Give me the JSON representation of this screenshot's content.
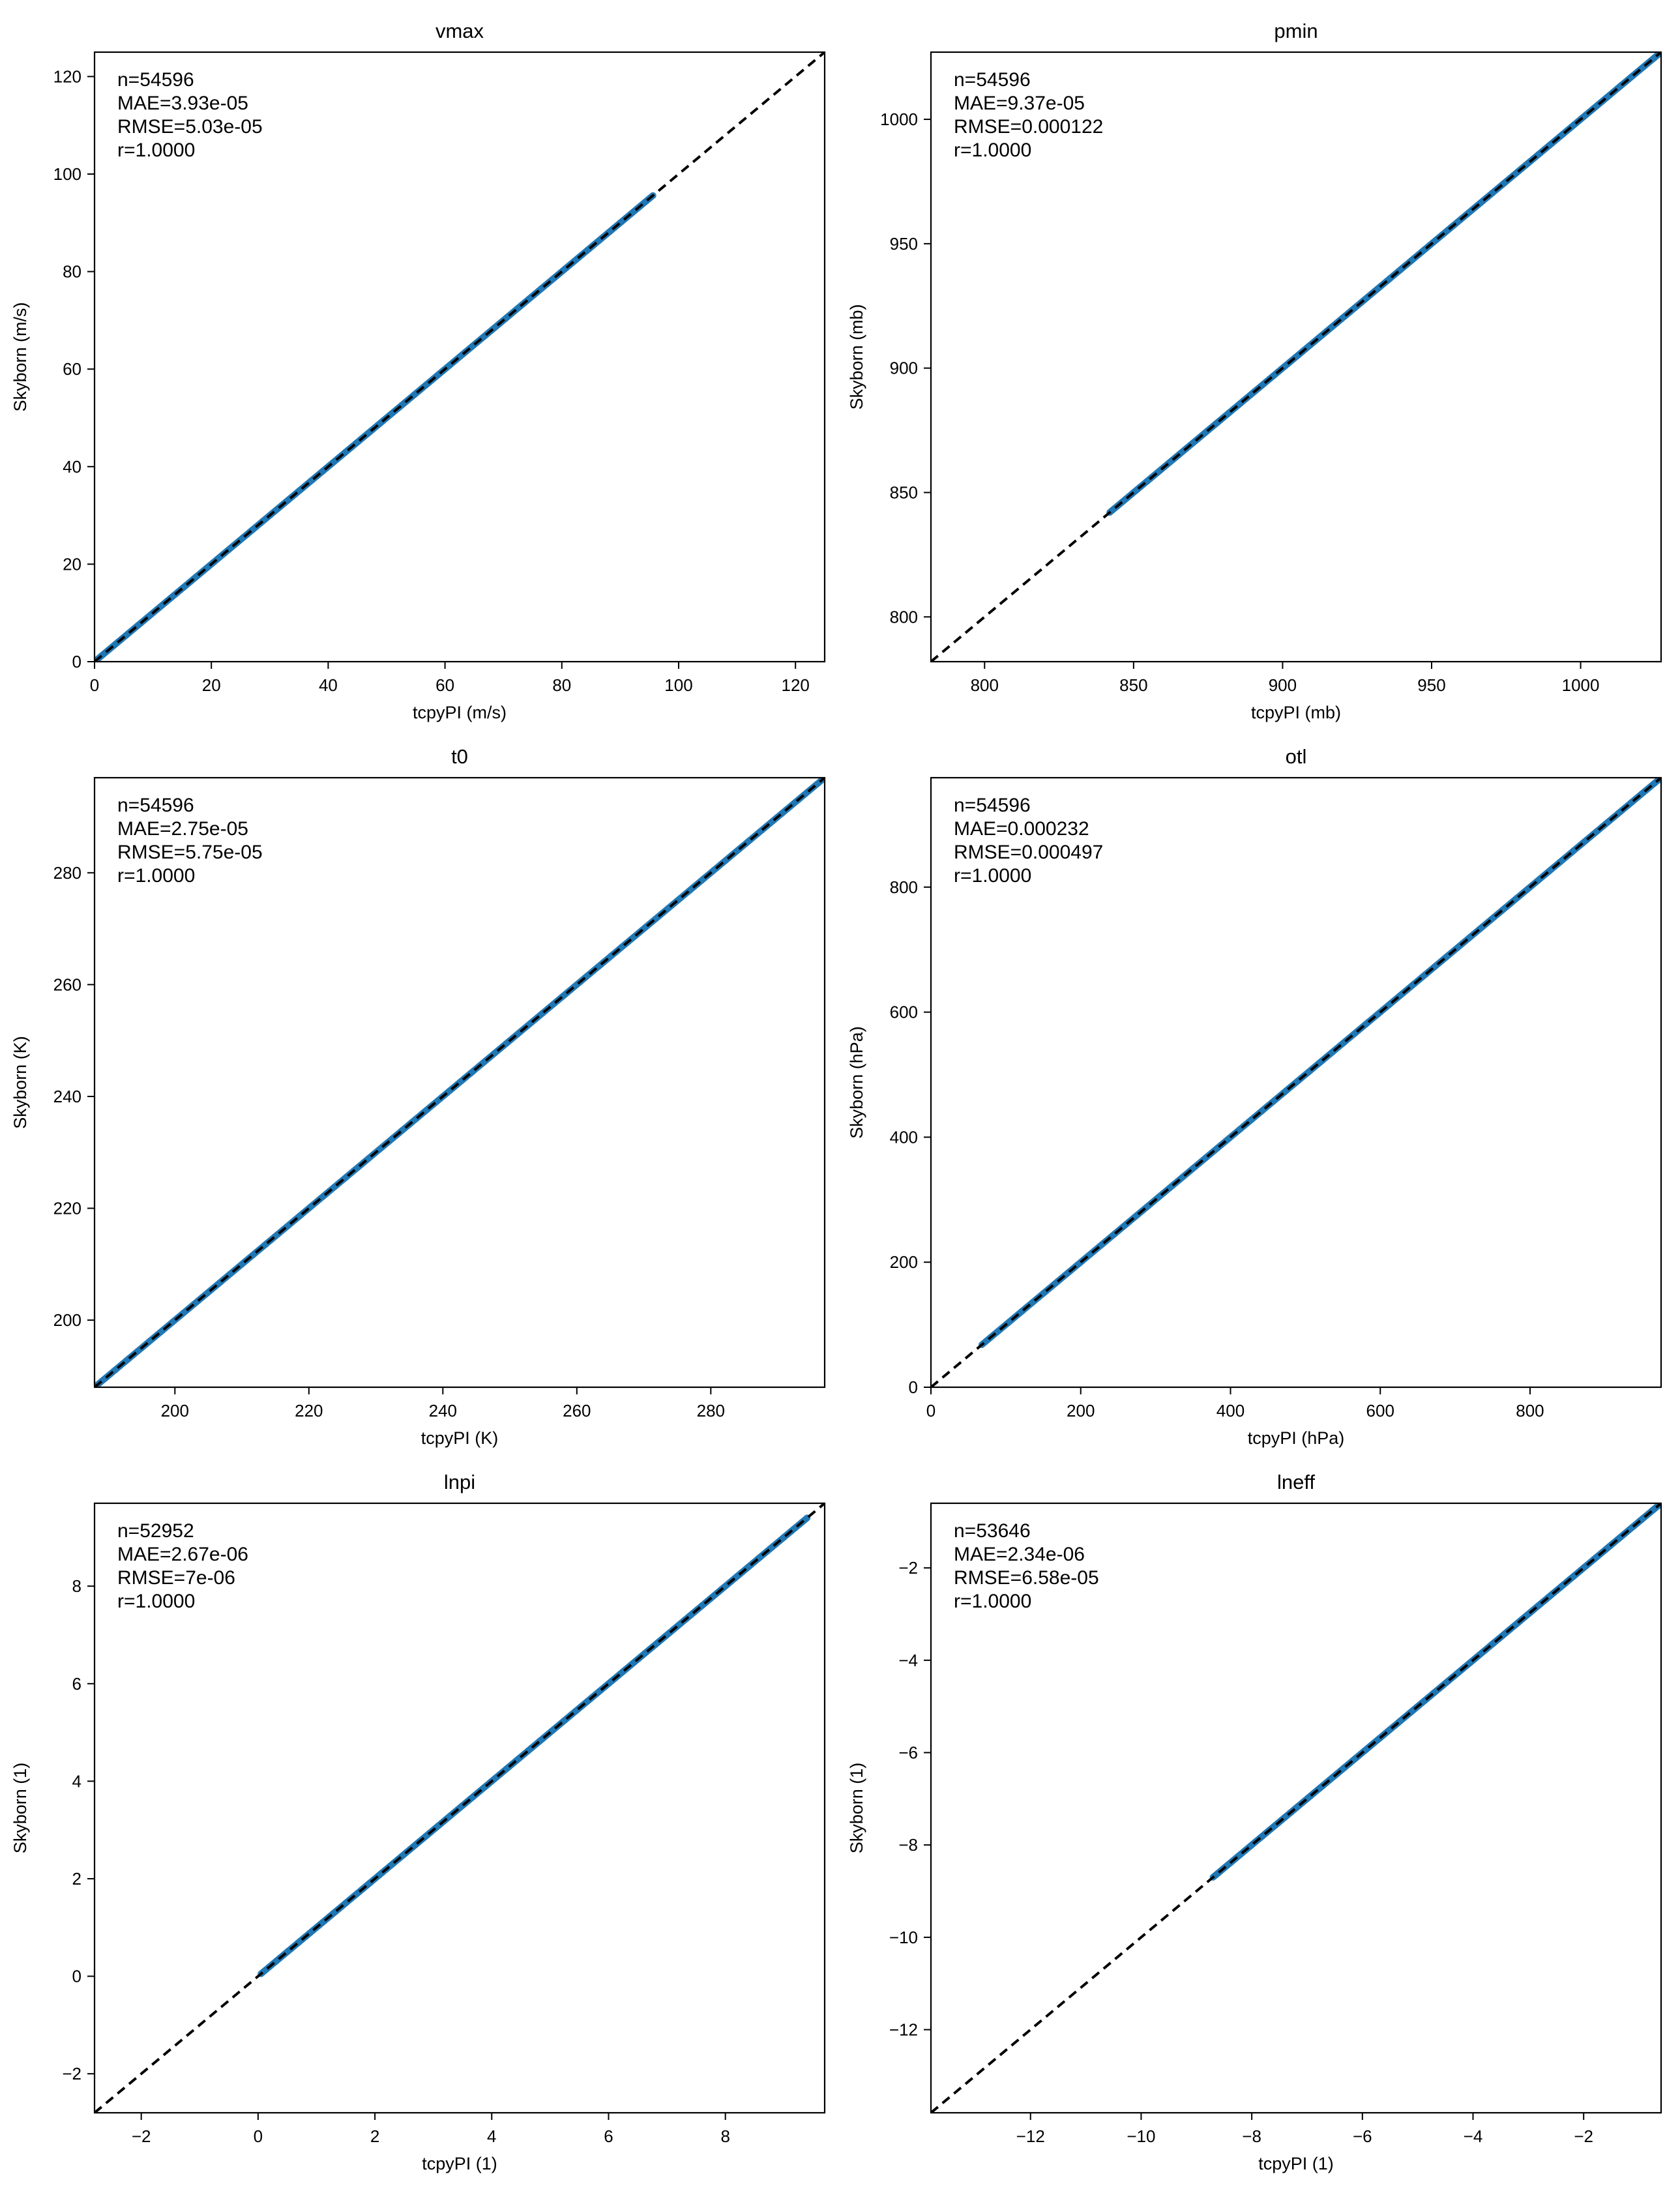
{
  "chart_data": [
    {
      "type": "scatter",
      "title": "vmax",
      "xlabel": "tcpyPI (m/s)",
      "ylabel": "Skyborn (m/s)",
      "xlim": [
        0,
        125
      ],
      "ylim": [
        0,
        125
      ],
      "xticks": [
        0,
        20,
        40,
        60,
        80,
        100,
        120
      ],
      "yticks": [
        0,
        20,
        40,
        60,
        80,
        100,
        120
      ],
      "identity_line": [
        0,
        125
      ],
      "data_range": [
        0,
        95.6
      ],
      "stats": [
        "n=54596",
        "MAE=3.93e-05",
        "RMSE=5.03e-05",
        "r=1.0000"
      ],
      "grid": false
    },
    {
      "type": "scatter",
      "title": "pmin",
      "xlabel": "tcpyPI (mb)",
      "ylabel": "Skyborn (mb)",
      "xlim": [
        782,
        1027
      ],
      "ylim": [
        782,
        1027
      ],
      "xticks": [
        800,
        850,
        900,
        950,
        1000
      ],
      "yticks": [
        800,
        850,
        900,
        950,
        1000
      ],
      "identity_line": [
        782,
        1027
      ],
      "data_range": [
        842,
        1027
      ],
      "stats": [
        "n=54596",
        "MAE=9.37e-05",
        "RMSE=0.000122",
        "r=1.0000"
      ],
      "grid": false
    },
    {
      "type": "scatter",
      "title": "t0",
      "xlabel": "tcpyPI (K)",
      "ylabel": "Skyborn (K)",
      "xlim": [
        188,
        297
      ],
      "ylim": [
        188,
        297
      ],
      "xticks": [
        200,
        220,
        240,
        260,
        280
      ],
      "yticks": [
        200,
        220,
        240,
        260,
        280
      ],
      "identity_line": [
        188,
        297
      ],
      "data_range": [
        188,
        297
      ],
      "stats": [
        "n=54596",
        "MAE=2.75e-05",
        "RMSE=5.75e-05",
        "r=1.0000"
      ],
      "grid": false
    },
    {
      "type": "scatter",
      "title": "otl",
      "xlabel": "tcpyPI (hPa)",
      "ylabel": "Skyborn (hPa)",
      "xlim": [
        0,
        975
      ],
      "ylim": [
        0,
        975
      ],
      "xticks": [
        0,
        200,
        400,
        600,
        800
      ],
      "yticks": [
        0,
        200,
        400,
        600,
        800
      ],
      "identity_line": [
        0,
        975
      ],
      "data_range": [
        68,
        975
      ],
      "stats": [
        "n=54596",
        "MAE=0.000232",
        "RMSE=0.000497",
        "r=1.0000"
      ],
      "grid": false
    },
    {
      "type": "scatter",
      "title": "lnpi",
      "xlabel": "tcpyPI (1)",
      "ylabel": "Skyborn (1)",
      "xlim": [
        -2.8,
        9.7
      ],
      "ylim": [
        -2.8,
        9.7
      ],
      "xticks": [
        -2,
        0,
        2,
        4,
        6,
        8
      ],
      "yticks": [
        -2,
        0,
        2,
        4,
        6,
        8
      ],
      "identity_line": [
        -2.8,
        9.7
      ],
      "data_range": [
        0.05,
        9.4
      ],
      "stats": [
        "n=52952",
        "MAE=2.67e-06",
        "RMSE=7e-06",
        "r=1.0000"
      ],
      "grid": false
    },
    {
      "type": "scatter",
      "title": "lneff",
      "xlabel": "tcpyPI (1)",
      "ylabel": "Skyborn (1)",
      "xlim": [
        -13.8,
        -0.6
      ],
      "ylim": [
        -13.8,
        -0.6
      ],
      "xticks": [
        -12,
        -10,
        -8,
        -6,
        -4,
        -2
      ],
      "yticks": [
        -12,
        -10,
        -8,
        -6,
        -4,
        -2
      ],
      "identity_line": [
        -13.8,
        -0.6
      ],
      "data_range": [
        -8.7,
        -0.6
      ],
      "stats": [
        "n=53646",
        "MAE=2.34e-06",
        "RMSE=6.58e-05",
        "r=1.0000"
      ],
      "grid": false
    }
  ],
  "colors": {
    "points": "#1f77b4",
    "identity": "#000000",
    "axes": "#000000"
  }
}
